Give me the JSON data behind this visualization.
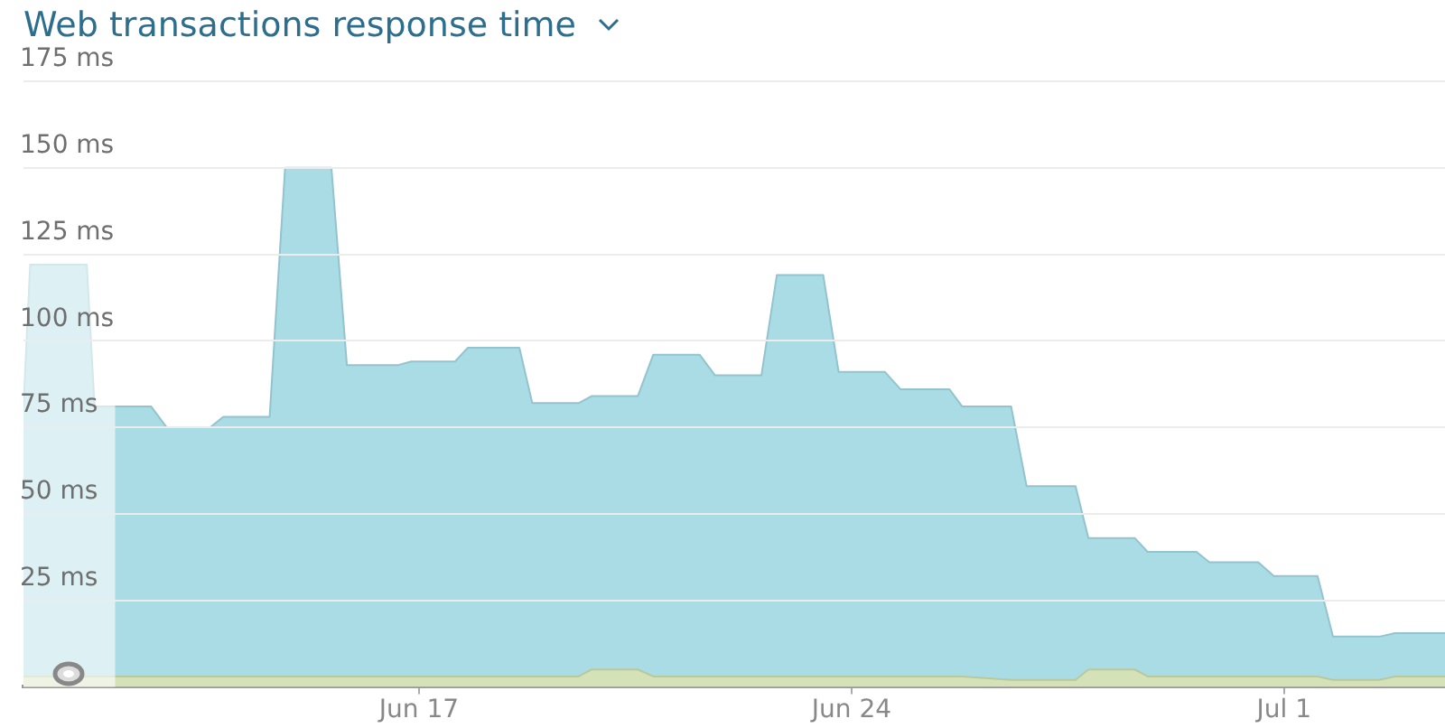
{
  "chart_data": {
    "type": "area",
    "title": "Web transactions response time",
    "stacked": true,
    "grid": "y",
    "legend": false,
    "marker": "none",
    "x": [
      "--06-10T14:24",
      "--06-10T17:00",
      "--06-11T15:00",
      "--06-11T18:00",
      "--06-12T16:00",
      "--06-12T22:00",
      "--06-13T15:00",
      "--06-13T20:00",
      "--06-14T14:00",
      "--06-14T20:00",
      "--06-15T14:00",
      "--06-15T20:00",
      "--06-16T16:00",
      "--06-16T21:00",
      "--06-17T14:00",
      "--06-17T19:00",
      "--06-18T15:00",
      "--06-18T20:00",
      "--06-19T14:00",
      "--06-19T19:00",
      "--06-20T13:00",
      "--06-20T19:00",
      "--06-21T13:00",
      "--06-21T19:00",
      "--06-22T13:00",
      "--06-22T19:00",
      "--06-23T13:00",
      "--06-23T19:00",
      "--06-24T13:00",
      "--06-24T19:00",
      "--06-25T14:00",
      "--06-25T19:00",
      "--06-26T14:00",
      "--06-26T20:00",
      "--06-27T15:00",
      "--06-27T20:00",
      "--06-28T14:00",
      "--06-28T19:00",
      "--06-29T14:00",
      "--06-29T19:00",
      "--06-30T14:00",
      "--06-30T20:00",
      "--07-01T13:00",
      "--07-01T19:00",
      "--07-02T13:00",
      "--07-02T19:00",
      "--07-03T14:30"
    ],
    "series": [
      {
        "color": "#d5e2b8",
        "values": [
          3,
          3,
          3,
          3,
          3,
          3,
          3,
          3,
          3,
          3,
          3,
          3,
          3,
          3,
          3,
          3,
          3,
          3,
          3,
          5,
          5,
          3,
          3,
          3,
          3,
          3,
          3,
          3,
          3,
          3,
          3,
          3,
          2,
          2,
          2,
          5,
          5,
          3,
          3,
          3,
          3,
          3,
          3,
          2,
          2,
          3,
          3
        ]
      },
      {
        "color": "#aadce6",
        "values": [
          78,
          119,
          119,
          78,
          78,
          72,
          72,
          75,
          75,
          147,
          147,
          90,
          90,
          91,
          91,
          95,
          95,
          79,
          79,
          79,
          79,
          93,
          93,
          87,
          87,
          116,
          116,
          88,
          88,
          83,
          83,
          78,
          79,
          56,
          56,
          38,
          38,
          36,
          36,
          33,
          33,
          29,
          29,
          12.5,
          12.5,
          12.5,
          12.5
        ]
      }
    ],
    "xlim": [
      "--06-10T14:24",
      "--07-03T14:30"
    ],
    "xticks": [
      {
        "value": "--06-17",
        "label": "Jun 17"
      },
      {
        "value": "--06-24",
        "label": "Jun 24"
      },
      {
        "value": "--07-01",
        "label": "Jul 1"
      }
    ],
    "bands": [
      {
        "axis": "x",
        "from": "--06-10T14:24",
        "to": "--06-12T02:00",
        "color": "#ffffff"
      }
    ],
    "ylim": [
      0,
      175
    ],
    "yticks": [
      {
        "value": 25,
        "label": "25 ms"
      },
      {
        "value": 50,
        "label": "50 ms"
      },
      {
        "value": 75,
        "label": "75 ms"
      },
      {
        "value": 100,
        "label": "100 ms"
      },
      {
        "value": 125,
        "label": "125 ms"
      },
      {
        "value": 150,
        "label": "150 ms"
      },
      {
        "value": 175,
        "label": "175 ms"
      }
    ]
  }
}
